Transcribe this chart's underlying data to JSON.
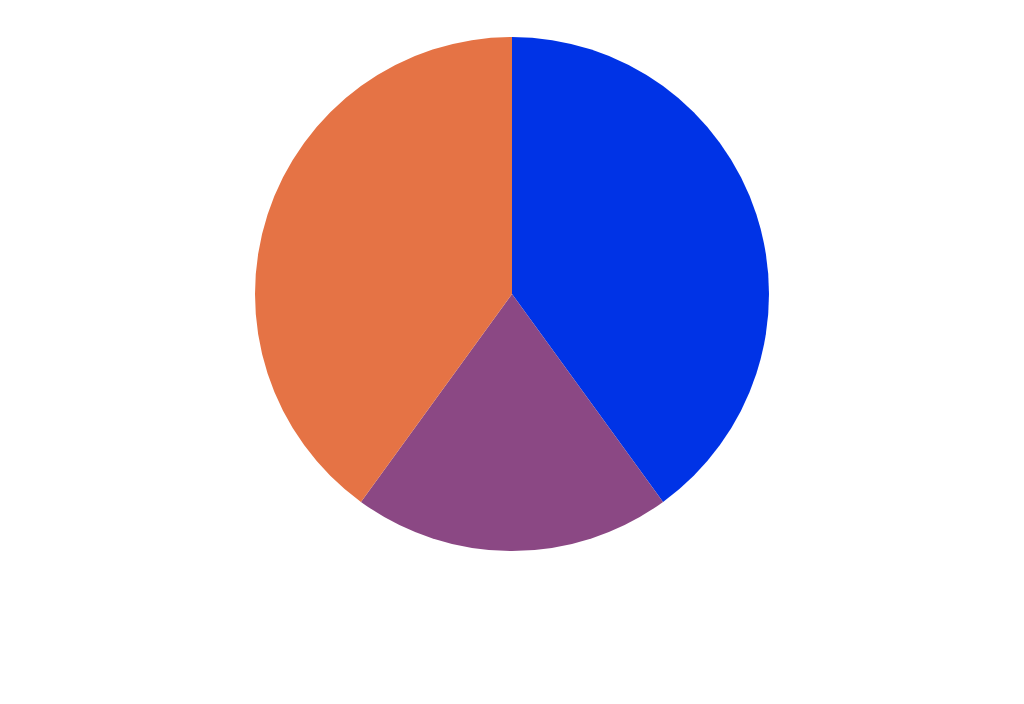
{
  "chart_data": {
    "type": "pie",
    "categories": [
      null,
      null,
      null
    ],
    "values": [
      40,
      20,
      40
    ],
    "colors": [
      "#0033e6",
      "#8b4884",
      "#e57345"
    ]
  }
}
